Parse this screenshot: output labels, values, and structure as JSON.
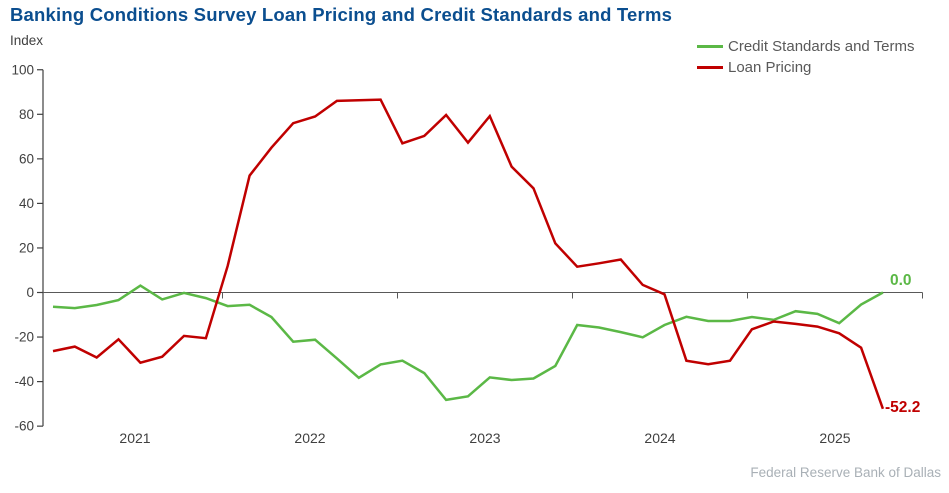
{
  "title": "Banking Conditions Survey Loan Pricing and Credit Standards and Terms",
  "y_axis_unit": "Index",
  "footer": "Federal Reserve Bank of Dallas",
  "colors": {
    "title": "#0b4e8f",
    "axis": "#404040",
    "axis_text": "#404040",
    "zero_line": "#595959",
    "legend_text": "#595959",
    "footer_text": "#a9b0b6",
    "green": "#5bb846",
    "red": "#c00000"
  },
  "chart_data": {
    "type": "line",
    "title": "Banking Conditions Survey Loan Pricing and Credit Standards and Terms",
    "xlabel": "",
    "ylabel": "Index",
    "ylim": [
      -60,
      100
    ],
    "y_ticks": [
      100,
      80,
      60,
      40,
      20,
      0,
      -20,
      -40,
      -60
    ],
    "x_year_labels": [
      "2021",
      "2022",
      "2023",
      "2024",
      "2025"
    ],
    "x_note": "surveys roughly every 6 weeks, 8 per year, first point early 2021",
    "grid": "zero baseline only, year ticks drawn on the zero line",
    "legend_position": "top-right",
    "series": [
      {
        "name": "Credit Standards and Terms",
        "color": "#5bb846",
        "end_label": "0.0",
        "values": [
          -6.4,
          -7.0,
          -5.6,
          -3.4,
          3.1,
          -3.1,
          -0.2,
          -2.5,
          -6.1,
          -5.5,
          -11.0,
          -22.1,
          -21.2,
          -29.6,
          -38.3,
          -32.3,
          -30.6,
          -36.2,
          -48.2,
          -46.6,
          -38.1,
          -39.3,
          -38.6,
          -33.0,
          -14.6,
          -15.7,
          -17.8,
          -20.1,
          -14.6,
          -10.9,
          -12.8,
          -12.8,
          -11.0,
          -12.3,
          -8.4,
          -9.6,
          -13.8,
          -5.4,
          0.0
        ]
      },
      {
        "name": "Loan Pricing",
        "color": "#c00000",
        "end_label": "-52.2",
        "values": [
          -26.3,
          -24.3,
          -29.2,
          -21.0,
          -31.5,
          -28.8,
          -19.5,
          -20.5,
          12.0,
          52.5,
          65.0,
          76.0,
          79.0,
          86.0,
          86.3,
          86.6,
          67.0,
          70.3,
          79.7,
          67.3,
          79.2,
          56.5,
          46.8,
          22.1,
          11.6,
          13.1,
          14.8,
          3.4,
          -0.8,
          -30.6,
          -32.2,
          -30.6,
          -16.5,
          -13.0,
          -14.1,
          -15.3,
          -18.3,
          -24.8,
          -52.2
        ]
      }
    ]
  }
}
